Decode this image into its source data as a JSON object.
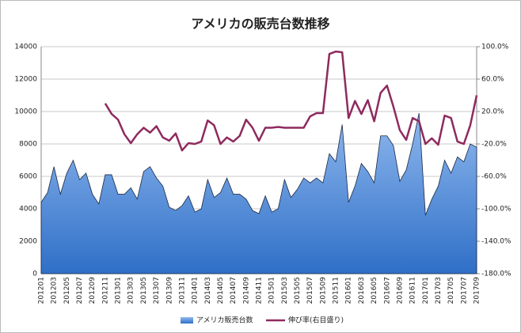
{
  "chart_data": {
    "type": "area",
    "title": "アメリカの販売台数推移",
    "categories": [
      "201201",
      null,
      "201203",
      null,
      "201205",
      null,
      "201207",
      null,
      "201209",
      null,
      "201211",
      null,
      "201301",
      null,
      "201303",
      null,
      "201305",
      null,
      "201307",
      null,
      "201309",
      null,
      "201311",
      null,
      "201401",
      null,
      "201403",
      null,
      "201405",
      null,
      "201407",
      null,
      "201409",
      null,
      "201411",
      null,
      "201501",
      null,
      "201503",
      null,
      "201505",
      null,
      "201507",
      null,
      "201509",
      null,
      "201511",
      null,
      "201601",
      null,
      "201603",
      null,
      "201605",
      null,
      "201607",
      null,
      "201609",
      null,
      "201611",
      null,
      "201701",
      null,
      "201703",
      null,
      "201705",
      null,
      "201707",
      null,
      "201709"
    ],
    "series": [
      {
        "name": "アメリカ販売台数",
        "type": "area",
        "color": "#4a86d8",
        "values": [
          4400,
          5000,
          6600,
          4900,
          6200,
          7000,
          5800,
          6200,
          4900,
          4300,
          6100,
          6100,
          4900,
          4900,
          5300,
          4600,
          6300,
          6600,
          5900,
          5400,
          4100,
          3900,
          4200,
          4800,
          3800,
          4000,
          5800,
          4700,
          5000,
          5900,
          4900,
          4900,
          4600,
          3900,
          3700,
          4800,
          3800,
          4000,
          5800,
          4700,
          5200,
          5900,
          5600,
          5900,
          5600,
          7400,
          6900,
          9200,
          4400,
          5400,
          6800,
          6300,
          5600,
          8500,
          8500,
          7900,
          5700,
          6400,
          8000,
          9900,
          3600,
          4600,
          5400,
          7000,
          6200,
          7200,
          6900,
          8000,
          7800
        ]
      },
      {
        "name": "伸び率(右目盛り)",
        "type": "line",
        "color": "#8e2a5e",
        "axis": "y2",
        "values": [
          null,
          null,
          null,
          null,
          null,
          null,
          null,
          null,
          null,
          null,
          30,
          17,
          10,
          -8,
          -19,
          -8,
          0,
          -6,
          2,
          -12,
          -16,
          -7,
          -28,
          -19,
          -20,
          -17,
          9,
          3,
          -20,
          -12,
          -17,
          -10,
          10,
          0,
          -16,
          0,
          0,
          1,
          0,
          0,
          0,
          0,
          14,
          18,
          18,
          91,
          94,
          93,
          12,
          33,
          17,
          34,
          8,
          43,
          52,
          26,
          -3,
          -15,
          12,
          8,
          -20,
          -13,
          -21,
          15,
          12,
          -17,
          -20,
          3,
          40
        ]
      }
    ],
    "ylim": [
      0,
      14000
    ],
    "yticks": [
      0,
      2000,
      4000,
      6000,
      8000,
      10000,
      12000,
      14000
    ],
    "y2lim": [
      -180,
      100
    ],
    "y2ticks": [
      {
        "value": 100,
        "label": "100.0%"
      },
      {
        "value": 60,
        "label": "60.0%"
      },
      {
        "value": 20,
        "label": "20.0%"
      },
      {
        "value": -20,
        "label": "-20.0%"
      },
      {
        "value": -60,
        "label": "-60.0%"
      },
      {
        "value": -100,
        "label": "-100.0%"
      },
      {
        "value": -140,
        "label": "-140.0%"
      },
      {
        "value": -180,
        "label": "-180.0%"
      }
    ],
    "grid": true,
    "legend": "bottom"
  }
}
